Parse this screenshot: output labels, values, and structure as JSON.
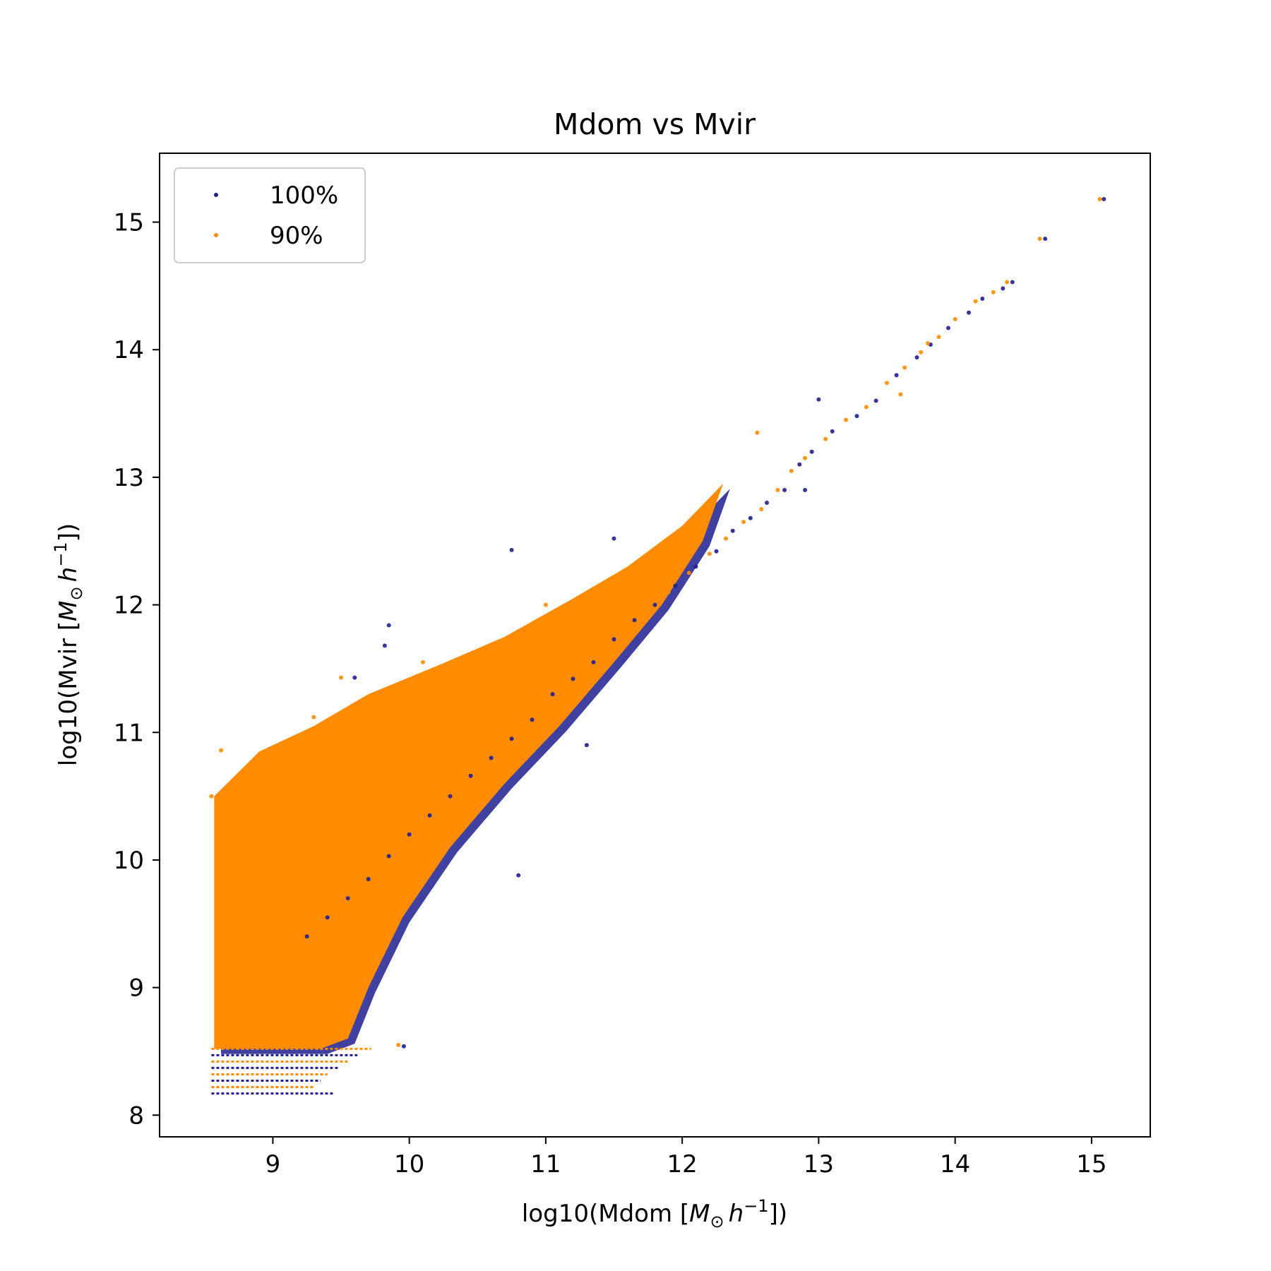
{
  "chart_data": {
    "type": "scatter",
    "title": "Mdom vs Mvir",
    "xlabel": {
      "prefix": "log10(Mdom [",
      "m": "M",
      "sun": "⊙",
      "h": "h",
      "exp": "−1",
      "suffix": "])"
    },
    "ylabel": {
      "prefix": "log10(Mvir [",
      "m": "M",
      "sun": "⊙",
      "h": "h",
      "exp": "−1",
      "suffix": "])"
    },
    "xlim": [
      8.17,
      15.43
    ],
    "ylim": [
      7.83,
      15.54
    ],
    "xticks": [
      "9",
      "10",
      "11",
      "12",
      "13",
      "14",
      "15"
    ],
    "yticks": [
      "8",
      "9",
      "10",
      "11",
      "12",
      "13",
      "14",
      "15"
    ],
    "grid": false,
    "legend_position": "top-left",
    "series": [
      {
        "name": "100%",
        "color": "#1f1f8f",
        "marker": "dot",
        "points": [
          [
            15.09,
            15.18
          ],
          [
            14.66,
            14.87
          ],
          [
            14.42,
            14.53
          ],
          [
            14.35,
            14.48
          ],
          [
            14.2,
            14.4
          ],
          [
            14.1,
            14.29
          ],
          [
            13.95,
            14.17
          ],
          [
            13.82,
            14.04
          ],
          [
            13.72,
            13.94
          ],
          [
            13.57,
            13.8
          ],
          [
            13.42,
            13.6
          ],
          [
            13.28,
            13.48
          ],
          [
            13.1,
            13.36
          ],
          [
            12.95,
            13.2
          ],
          [
            12.86,
            13.1
          ],
          [
            12.75,
            12.9
          ],
          [
            12.62,
            12.8
          ],
          [
            12.5,
            12.68
          ],
          [
            12.37,
            12.58
          ],
          [
            12.25,
            12.42
          ],
          [
            12.1,
            12.3
          ],
          [
            11.95,
            12.15
          ],
          [
            11.8,
            12.0
          ],
          [
            11.65,
            11.88
          ],
          [
            11.5,
            11.73
          ],
          [
            11.35,
            11.55
          ],
          [
            11.2,
            11.42
          ],
          [
            11.05,
            11.3
          ],
          [
            10.9,
            11.1
          ],
          [
            10.75,
            10.95
          ],
          [
            10.6,
            10.8
          ],
          [
            10.45,
            10.66
          ],
          [
            10.3,
            10.5
          ],
          [
            10.15,
            10.35
          ],
          [
            10.0,
            10.2
          ],
          [
            9.85,
            10.03
          ],
          [
            9.7,
            9.85
          ],
          [
            9.55,
            9.7
          ],
          [
            9.4,
            9.55
          ],
          [
            9.25,
            9.4
          ],
          [
            9.96,
            8.54
          ],
          [
            9.82,
            11.68
          ],
          [
            9.85,
            11.84
          ],
          [
            9.6,
            11.43
          ],
          [
            10.75,
            12.43
          ],
          [
            11.5,
            12.52
          ],
          [
            13.0,
            13.61
          ],
          [
            12.9,
            12.9
          ],
          [
            10.8,
            9.88
          ],
          [
            11.3,
            10.9
          ]
        ]
      },
      {
        "name": "90%",
        "color": "#ff8c00",
        "marker": "dot",
        "points": [
          [
            15.06,
            15.18
          ],
          [
            14.62,
            14.87
          ],
          [
            14.38,
            14.53
          ],
          [
            14.28,
            14.45
          ],
          [
            14.15,
            14.38
          ],
          [
            14.0,
            14.24
          ],
          [
            13.88,
            14.1
          ],
          [
            13.75,
            13.98
          ],
          [
            13.63,
            13.86
          ],
          [
            13.5,
            13.74
          ],
          [
            13.35,
            13.55
          ],
          [
            13.2,
            13.45
          ],
          [
            13.05,
            13.3
          ],
          [
            12.9,
            13.15
          ],
          [
            12.8,
            13.05
          ],
          [
            12.7,
            12.9
          ],
          [
            12.58,
            12.75
          ],
          [
            12.45,
            12.65
          ],
          [
            12.32,
            12.52
          ],
          [
            12.2,
            12.4
          ],
          [
            12.05,
            12.25
          ],
          [
            11.9,
            12.1
          ],
          [
            11.75,
            11.95
          ],
          [
            11.6,
            11.82
          ],
          [
            11.45,
            11.68
          ],
          [
            11.3,
            11.5
          ],
          [
            11.15,
            11.38
          ],
          [
            11.0,
            11.25
          ],
          [
            10.85,
            11.05
          ],
          [
            10.7,
            10.92
          ],
          [
            10.55,
            10.75
          ],
          [
            10.4,
            10.6
          ],
          [
            10.25,
            10.45
          ],
          [
            10.1,
            10.3
          ],
          [
            9.95,
            10.15
          ],
          [
            9.8,
            9.98
          ],
          [
            9.65,
            9.82
          ],
          [
            9.5,
            9.68
          ],
          [
            9.35,
            9.5
          ],
          [
            9.2,
            9.35
          ],
          [
            9.92,
            8.55
          ],
          [
            9.3,
            11.12
          ],
          [
            9.5,
            11.43
          ],
          [
            10.1,
            11.55
          ],
          [
            11.0,
            12.0
          ],
          [
            12.55,
            13.35
          ],
          [
            13.6,
            13.65
          ],
          [
            13.8,
            14.05
          ],
          [
            8.62,
            10.86
          ],
          [
            8.55,
            10.5
          ]
        ]
      }
    ]
  }
}
